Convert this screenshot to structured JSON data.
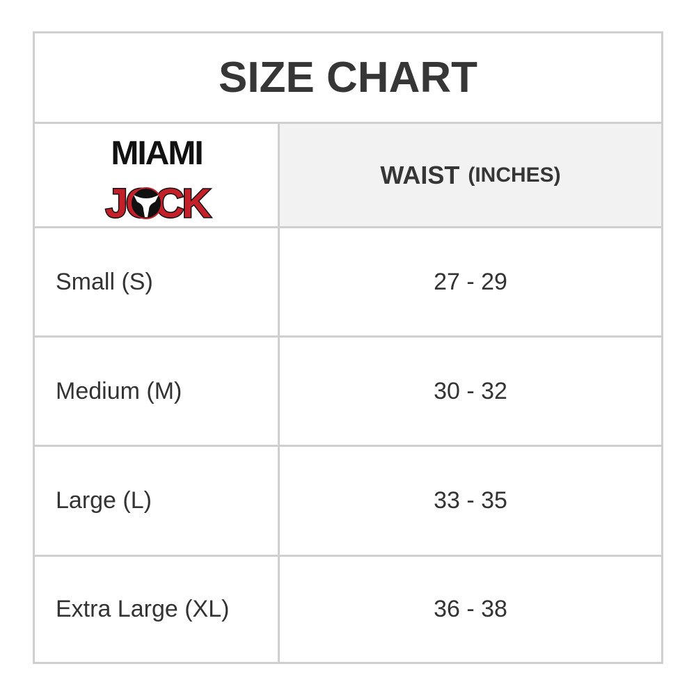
{
  "title": "SIZE CHART",
  "logo": {
    "line1": "MIAMI",
    "line2": "JOCK",
    "colors": {
      "black": "#111111",
      "red": "#c4202a"
    }
  },
  "header": {
    "column": "WAIST",
    "unit": "(INCHES)"
  },
  "rows": [
    {
      "size": "Small (S)",
      "waist": "27 - 29"
    },
    {
      "size": "Medium (M)",
      "waist": "30 - 32"
    },
    {
      "size": "Large (L)",
      "waist": "33 - 35"
    },
    {
      "size": "Extra Large (XL)",
      "waist": "36 - 38"
    }
  ]
}
